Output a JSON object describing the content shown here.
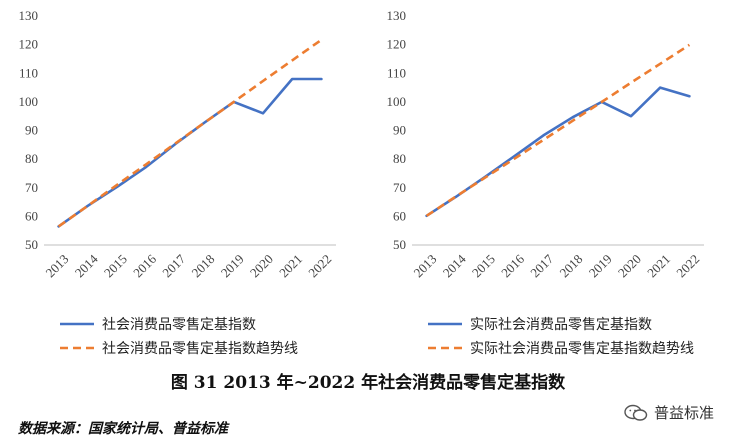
{
  "chart_data": [
    {
      "type": "line",
      "x": [
        "2013",
        "2014",
        "2015",
        "2016",
        "2017",
        "2018",
        "2019",
        "2020",
        "2021",
        "2022"
      ],
      "ylim": [
        50,
        130
      ],
      "yticks": [
        50,
        60,
        70,
        80,
        90,
        100,
        110,
        120,
        130
      ],
      "grid": false,
      "legend_position": "bottom",
      "series": [
        {
          "name": "社会消费品零售定基指数",
          "values": [
            56.5,
            63.7,
            70.3,
            77.3,
            85.3,
            92.8,
            100.0,
            96.0,
            108.0,
            108.0
          ],
          "color": "#4472C4",
          "style": "solid",
          "x_end": "2022"
        },
        {
          "name": "社会消费品零售定基指数趋势线",
          "values": [
            56.5,
            63.7,
            71.0,
            78.2,
            85.5,
            92.8,
            100.0,
            107.3,
            114.5,
            121.7
          ],
          "color": "#ED7D31",
          "style": "dashed",
          "x_end": "2022"
        }
      ]
    },
    {
      "type": "line",
      "x": [
        "2013",
        "2014",
        "2015",
        "2016",
        "2017",
        "2018",
        "2019",
        "2020",
        "2021",
        "2022"
      ],
      "ylim": [
        50,
        130
      ],
      "yticks": [
        50,
        60,
        70,
        80,
        90,
        100,
        110,
        120,
        130
      ],
      "grid": false,
      "legend_position": "bottom",
      "series": [
        {
          "name": "实际社会消费品零售定基指数",
          "values": [
            60.2,
            66.8,
            73.8,
            81.0,
            88.3,
            94.6,
            100.0,
            95.0,
            105.0,
            102.0
          ],
          "color": "#4472C4",
          "style": "solid",
          "x_end": "2022"
        },
        {
          "name": "实际社会消费品零售定基指数趋势线",
          "values": [
            60.2,
            66.9,
            73.5,
            80.1,
            86.7,
            93.4,
            100.0,
            106.7,
            113.3,
            119.9
          ],
          "color": "#ED7D31",
          "style": "dashed",
          "x_end": "2022"
        }
      ]
    }
  ],
  "caption": "图 31   2013 年~2022 年社会消费品零售定基指数",
  "source": "数据来源：国家统计局、普益标准",
  "watermark": "普益标准"
}
